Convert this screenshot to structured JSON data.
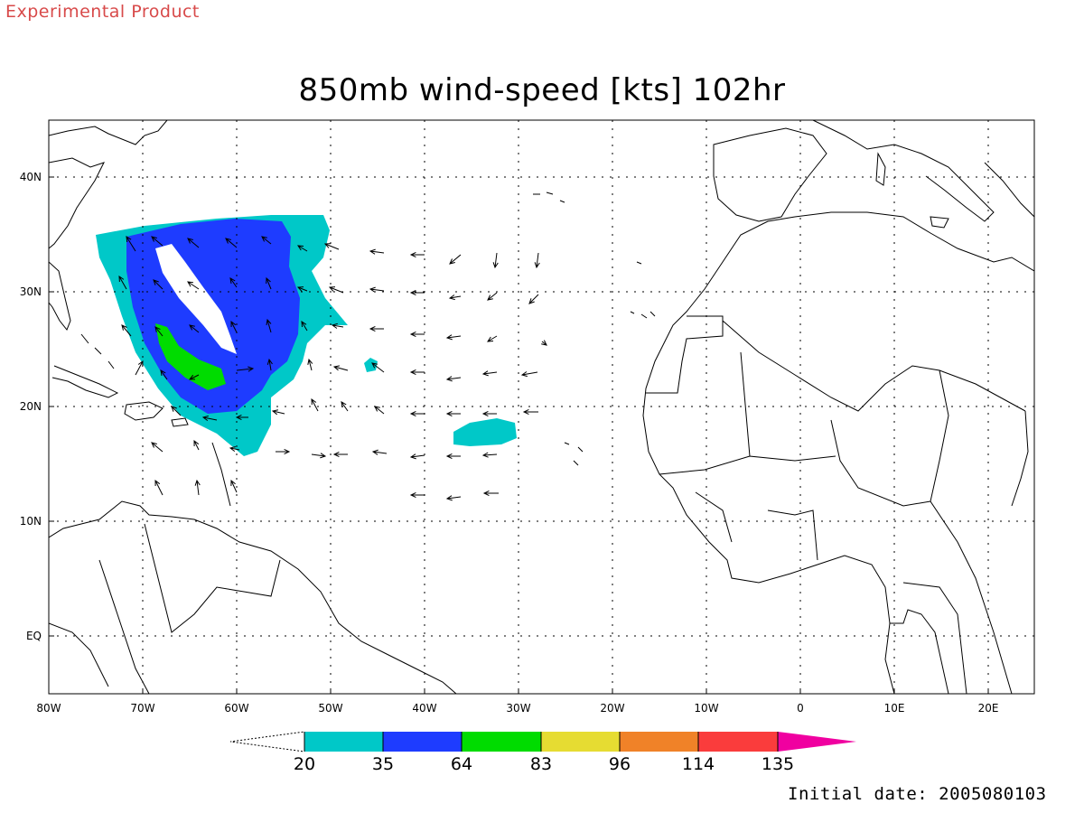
{
  "header": {
    "experimental_label": "Experimental Product",
    "title": "850mb wind-speed [kts] 102hr",
    "initial_date": "Initial date: 2005080103"
  },
  "axes": {
    "lon_ticks": [
      "80W",
      "70W",
      "60W",
      "50W",
      "40W",
      "30W",
      "20W",
      "10W",
      "0",
      "10E",
      "20E"
    ],
    "lat_ticks": [
      "40N",
      "30N",
      "20N",
      "10N",
      "EQ"
    ]
  },
  "colorbar": {
    "labels": [
      "20",
      "35",
      "64",
      "83",
      "96",
      "114",
      "135"
    ],
    "colors": [
      "#00c8c8",
      "#1e3cff",
      "#00dc00",
      "#e6dc32",
      "#f08228",
      "#fa3c3c",
      "#f000a0"
    ]
  },
  "map_data": {
    "lon_range": [
      -80,
      25
    ],
    "lat_range": [
      -5,
      45
    ],
    "gridlines": true
  }
}
